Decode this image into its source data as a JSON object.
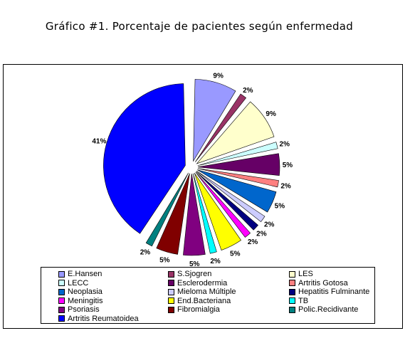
{
  "chart_data": {
    "type": "pie",
    "title": "Gráfico #1. Porcentaje de pacientes según enfermedad",
    "legend_position": "bottom",
    "slices": [
      {
        "name": "E.Hansen",
        "value": 9,
        "label": "9%",
        "color": "#9999FF"
      },
      {
        "name": "S.Sjogren",
        "value": 2,
        "label": "2%",
        "color": "#993366"
      },
      {
        "name": "LES",
        "value": 9,
        "label": "9%",
        "color": "#FFFFCC"
      },
      {
        "name": "LECC",
        "value": 2,
        "label": "2%",
        "color": "#CCFFFF"
      },
      {
        "name": "Esclerodermia",
        "value": 5,
        "label": "5%",
        "color": "#660066"
      },
      {
        "name": "Artritis Gotosa",
        "value": 2,
        "label": "2%",
        "color": "#FF8080"
      },
      {
        "name": "Neoplasia",
        "value": 5,
        "label": "5%",
        "color": "#0066CC"
      },
      {
        "name": "Mieloma Múltiple",
        "value": 2,
        "label": "2%",
        "color": "#CCCCFF"
      },
      {
        "name": "Hepatitis Fulminante",
        "value": 2,
        "label": "2%",
        "color": "#000080"
      },
      {
        "name": "Meningitis",
        "value": 2,
        "label": "2%",
        "color": "#FF00FF"
      },
      {
        "name": "End.Bacteriana",
        "value": 5,
        "label": "5%",
        "color": "#FFFF00"
      },
      {
        "name": "TB",
        "value": 2,
        "label": "2%",
        "color": "#00FFFF"
      },
      {
        "name": "Psoriasis",
        "value": 5,
        "label": "5%",
        "color": "#800080"
      },
      {
        "name": "Fibromialgia",
        "value": 5,
        "label": "5%",
        "color": "#800000"
      },
      {
        "name": "Polic.Recidivante",
        "value": 2,
        "label": "2%",
        "color": "#008080"
      },
      {
        "name": "Artritis Reumatoidea",
        "value": 41,
        "label": "41%",
        "color": "#0000FF"
      }
    ]
  }
}
